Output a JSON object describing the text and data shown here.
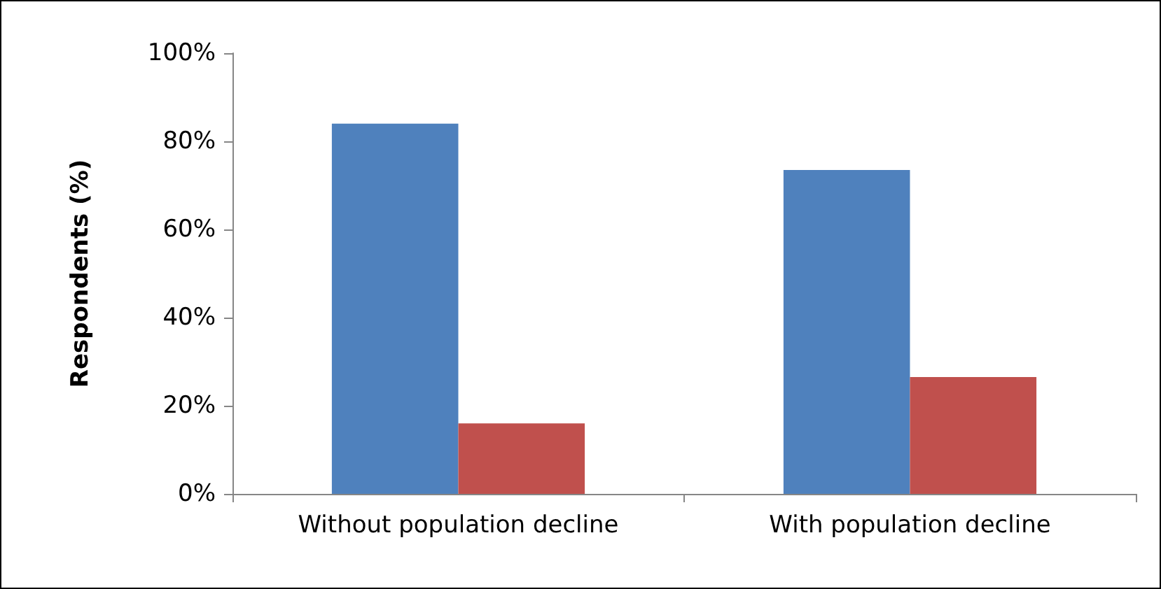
{
  "chart_data": {
    "type": "bar",
    "ylabel": "Respondents (%)",
    "categories": [
      "Without population decline",
      "With population decline"
    ],
    "series": [
      {
        "color": "#4f81bd",
        "values": [
          84,
          73.5
        ]
      },
      {
        "color": "#c0504d",
        "values": [
          16,
          26.5
        ]
      }
    ],
    "ylim": [
      0,
      100
    ],
    "yticks": [
      {
        "value": 0,
        "label": "0%"
      },
      {
        "value": 20,
        "label": "20%"
      },
      {
        "value": 40,
        "label": "40%"
      },
      {
        "value": 60,
        "label": "60%"
      },
      {
        "value": 80,
        "label": "80%"
      },
      {
        "value": 100,
        "label": "100%"
      }
    ],
    "data_labels": false
  }
}
